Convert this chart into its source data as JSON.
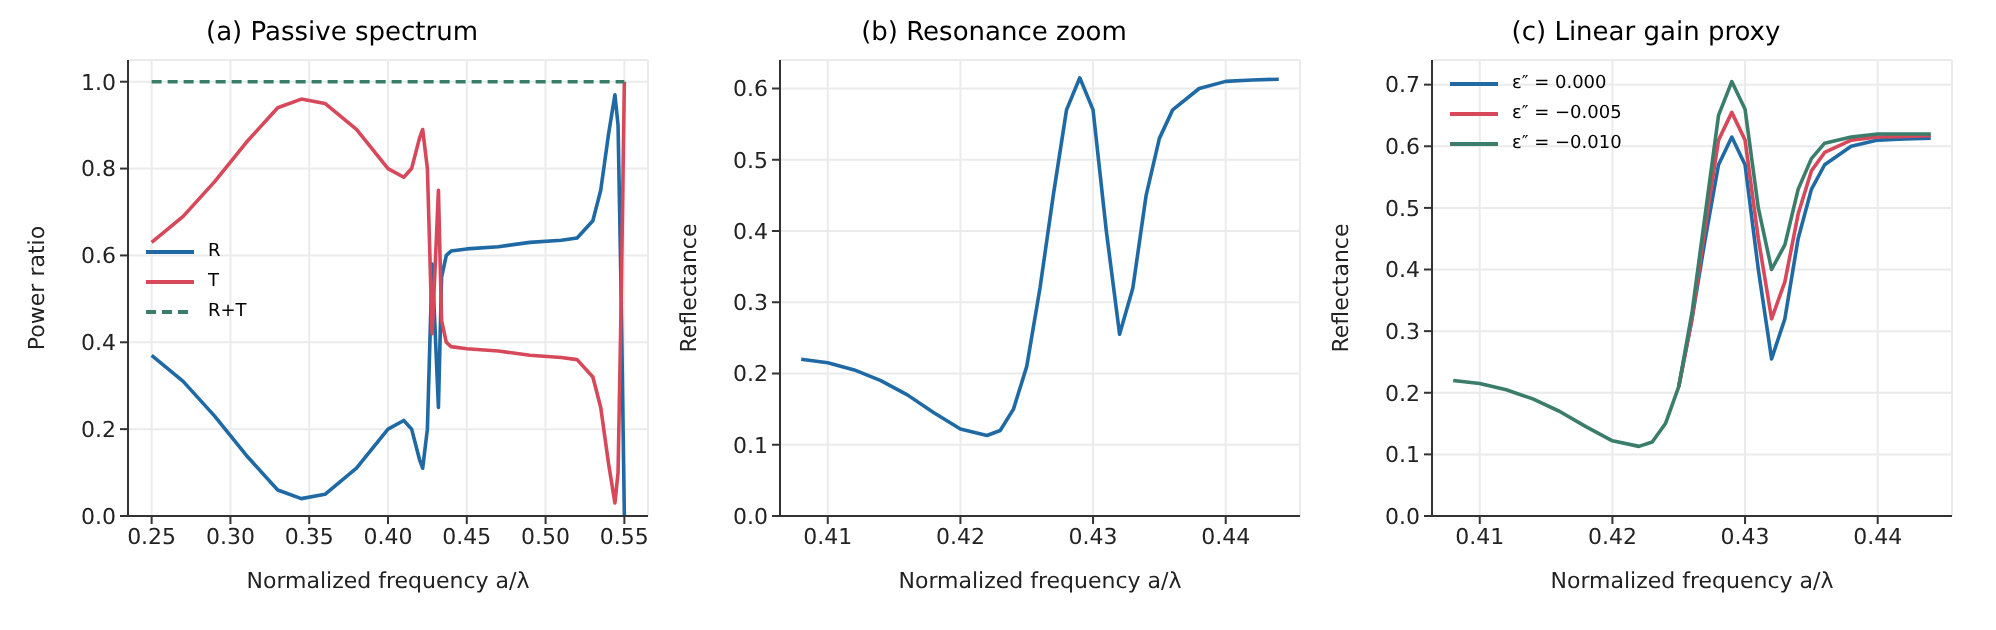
{
  "chart_data": [
    {
      "type": "line",
      "title": "(a) Passive spectrum",
      "xlabel": "Normalized frequency a/λ",
      "ylabel": "Power ratio",
      "xlim": [
        0.235,
        0.565
      ],
      "ylim": [
        0,
        1.05
      ],
      "xticks": [
        {
          "value": 0.25,
          "label": "0.25"
        },
        {
          "value": 0.3,
          "label": "0.30"
        },
        {
          "value": 0.35,
          "label": "0.35"
        },
        {
          "value": 0.4,
          "label": "0.40"
        },
        {
          "value": 0.45,
          "label": "0.45"
        },
        {
          "value": 0.5,
          "label": "0.50"
        },
        {
          "value": 0.55,
          "label": "0.55"
        }
      ],
      "yticks": [
        {
          "value": 0,
          "label": "0.0"
        },
        {
          "value": 0.2,
          "label": "0.2"
        },
        {
          "value": 0.4,
          "label": "0.4"
        },
        {
          "value": 0.6,
          "label": "0.6"
        },
        {
          "value": 0.8,
          "label": "0.8"
        },
        {
          "value": 1,
          "label": "1.0"
        }
      ],
      "grid": true,
      "legend": "left",
      "marker": "none",
      "x": [
        0.25,
        0.27,
        0.29,
        0.31,
        0.33,
        0.345,
        0.36,
        0.38,
        0.4,
        0.41,
        0.415,
        0.42,
        0.422,
        0.425,
        0.428,
        0.43,
        0.432,
        0.434,
        0.437,
        0.44,
        0.45,
        0.47,
        0.49,
        0.51,
        0.52,
        0.53,
        0.535,
        0.54,
        0.544,
        0.546,
        0.548,
        0.55
      ],
      "series": [
        {
          "name": "R",
          "color": "#1f6aa5",
          "values": [
            0.37,
            0.31,
            0.23,
            0.14,
            0.06,
            0.04,
            0.05,
            0.11,
            0.2,
            0.22,
            0.2,
            0.13,
            0.11,
            0.2,
            0.58,
            0.42,
            0.25,
            0.55,
            0.6,
            0.61,
            0.615,
            0.62,
            0.63,
            0.635,
            0.64,
            0.68,
            0.75,
            0.88,
            0.97,
            0.9,
            0.5,
            0.0
          ]
        },
        {
          "name": "T",
          "color": "#d6485a",
          "values": [
            0.63,
            0.69,
            0.77,
            0.86,
            0.94,
            0.96,
            0.95,
            0.89,
            0.8,
            0.78,
            0.8,
            0.87,
            0.89,
            0.8,
            0.42,
            0.58,
            0.75,
            0.45,
            0.4,
            0.39,
            0.385,
            0.38,
            0.37,
            0.365,
            0.36,
            0.32,
            0.25,
            0.12,
            0.03,
            0.1,
            0.5,
            1.0
          ]
        },
        {
          "name": "R+T",
          "color": "#3a7d6a",
          "line_style": "dashed",
          "x": [
            0.25,
            0.55
          ],
          "values": [
            1,
            1
          ]
        }
      ]
    },
    {
      "type": "line",
      "title": "(b) Resonance zoom",
      "xlabel": "Normalized frequency a/λ",
      "ylabel": "Reflectance",
      "xlim": [
        0.4064,
        0.4456
      ],
      "ylim": [
        0,
        0.64
      ],
      "xticks": [
        0.41,
        0.42,
        0.43,
        0.44
      ],
      "yticks": [
        {
          "value": 0,
          "label": "0.0"
        },
        0.1,
        0.2,
        0.3,
        0.4,
        0.5,
        0.6
      ],
      "grid": true,
      "marker": "none",
      "x": [
        0.408,
        0.41,
        0.412,
        0.414,
        0.416,
        0.418,
        0.42,
        0.422,
        0.423,
        0.424,
        0.425,
        0.426,
        0.427,
        0.428,
        0.429,
        0.43,
        0.431,
        0.432,
        0.433,
        0.434,
        0.435,
        0.436,
        0.438,
        0.44,
        0.442,
        0.444
      ],
      "series": [
        {
          "color": "#1f6aa5",
          "values": [
            0.22,
            0.215,
            0.205,
            0.19,
            0.17,
            0.145,
            0.122,
            0.113,
            0.12,
            0.15,
            0.21,
            0.32,
            0.45,
            0.57,
            0.615,
            0.57,
            0.4,
            0.255,
            0.32,
            0.45,
            0.53,
            0.57,
            0.6,
            0.61,
            0.612,
            0.613
          ]
        }
      ]
    },
    {
      "type": "line",
      "title": "(c) Linear gain proxy",
      "xlabel": "Normalized frequency a/λ",
      "ylabel": "Reflectance",
      "xlim": [
        0.4064,
        0.4456
      ],
      "ylim": [
        0,
        0.74
      ],
      "xticks": [
        0.41,
        0.42,
        0.43,
        0.44
      ],
      "yticks": [
        {
          "value": 0,
          "label": "0.0"
        },
        0.1,
        0.2,
        0.3,
        0.4,
        0.5,
        0.6,
        0.7
      ],
      "grid": true,
      "legend": "top left",
      "marker": "none",
      "x": [
        0.408,
        0.41,
        0.412,
        0.414,
        0.416,
        0.418,
        0.42,
        0.422,
        0.423,
        0.424,
        0.425,
        0.426,
        0.427,
        0.428,
        0.429,
        0.43,
        0.431,
        0.432,
        0.433,
        0.434,
        0.435,
        0.436,
        0.438,
        0.44,
        0.442,
        0.444
      ],
      "series": [
        {
          "name": "ε″ = 0.000",
          "color": "#1f6aa5",
          "values": [
            null,
            null,
            null,
            null,
            null,
            null,
            null,
            null,
            null,
            null,
            0.21,
            0.32,
            0.45,
            0.57,
            0.615,
            0.57,
            0.4,
            0.255,
            0.32,
            0.45,
            0.53,
            0.57,
            0.6,
            0.61,
            0.612,
            0.613
          ]
        },
        {
          "name": "ε″ = −0.005",
          "color": "#d6485a",
          "values": [
            null,
            null,
            null,
            null,
            null,
            null,
            null,
            null,
            null,
            null,
            0.21,
            0.32,
            0.47,
            0.61,
            0.655,
            0.61,
            0.45,
            0.32,
            0.38,
            0.49,
            0.56,
            0.59,
            0.61,
            0.615,
            0.616,
            0.617
          ]
        },
        {
          "name": "ε″ = −0.010",
          "color": "#3a7d6a",
          "values": [
            0.22,
            0.215,
            0.205,
            0.19,
            0.17,
            0.145,
            0.122,
            0.113,
            0.12,
            0.15,
            0.21,
            0.33,
            0.49,
            0.65,
            0.705,
            0.66,
            0.5,
            0.4,
            0.44,
            0.53,
            0.58,
            0.605,
            0.615,
            0.62,
            0.62,
            0.62
          ]
        }
      ]
    }
  ]
}
